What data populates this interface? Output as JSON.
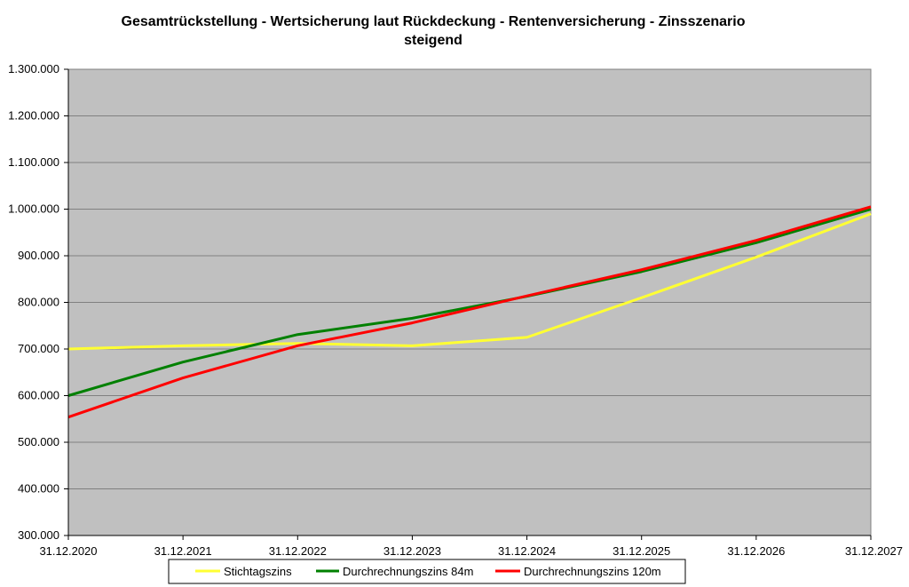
{
  "chart_data": {
    "type": "line",
    "title": "Gesamtrückstellung - Wertsicherung laut Rückdeckung - Rentenversicherung - Zinsszenario",
    "subtitle": "steigend",
    "xlabel": "",
    "ylabel": "",
    "categories": [
      "31.12.2020",
      "31.12.2021",
      "31.12.2022",
      "31.12.2023",
      "31.12.2024",
      "31.12.2025",
      "31.12.2026",
      "31.12.2027"
    ],
    "ylim": [
      300000,
      1300000
    ],
    "yticks": [
      300000,
      400000,
      500000,
      600000,
      700000,
      800000,
      900000,
      1000000,
      1100000,
      1200000,
      1300000
    ],
    "ytick_labels": [
      "300.000",
      "400.000",
      "500.000",
      "600.000",
      "700.000",
      "800.000",
      "900.000",
      "1.000.000",
      "1.100.000",
      "1.200.000",
      "1.300.000"
    ],
    "grid": true,
    "legend_position": "bottom",
    "plot_background": "#c0c0c0",
    "series": [
      {
        "name": "Stichtagszins",
        "color": "#ffff33",
        "values": [
          700000,
          707000,
          712000,
          707000,
          725000,
          810000,
          897000,
          990000
        ]
      },
      {
        "name": "Durchrechnungszins 84m",
        "color": "#008000",
        "values": [
          600000,
          672000,
          731000,
          766000,
          813000,
          866000,
          928000,
          1000000
        ]
      },
      {
        "name": "Durchrechnungszins 120m",
        "color": "#ff0000",
        "values": [
          554000,
          638000,
          707000,
          756000,
          814000,
          870000,
          933000,
          1005000
        ]
      }
    ]
  }
}
